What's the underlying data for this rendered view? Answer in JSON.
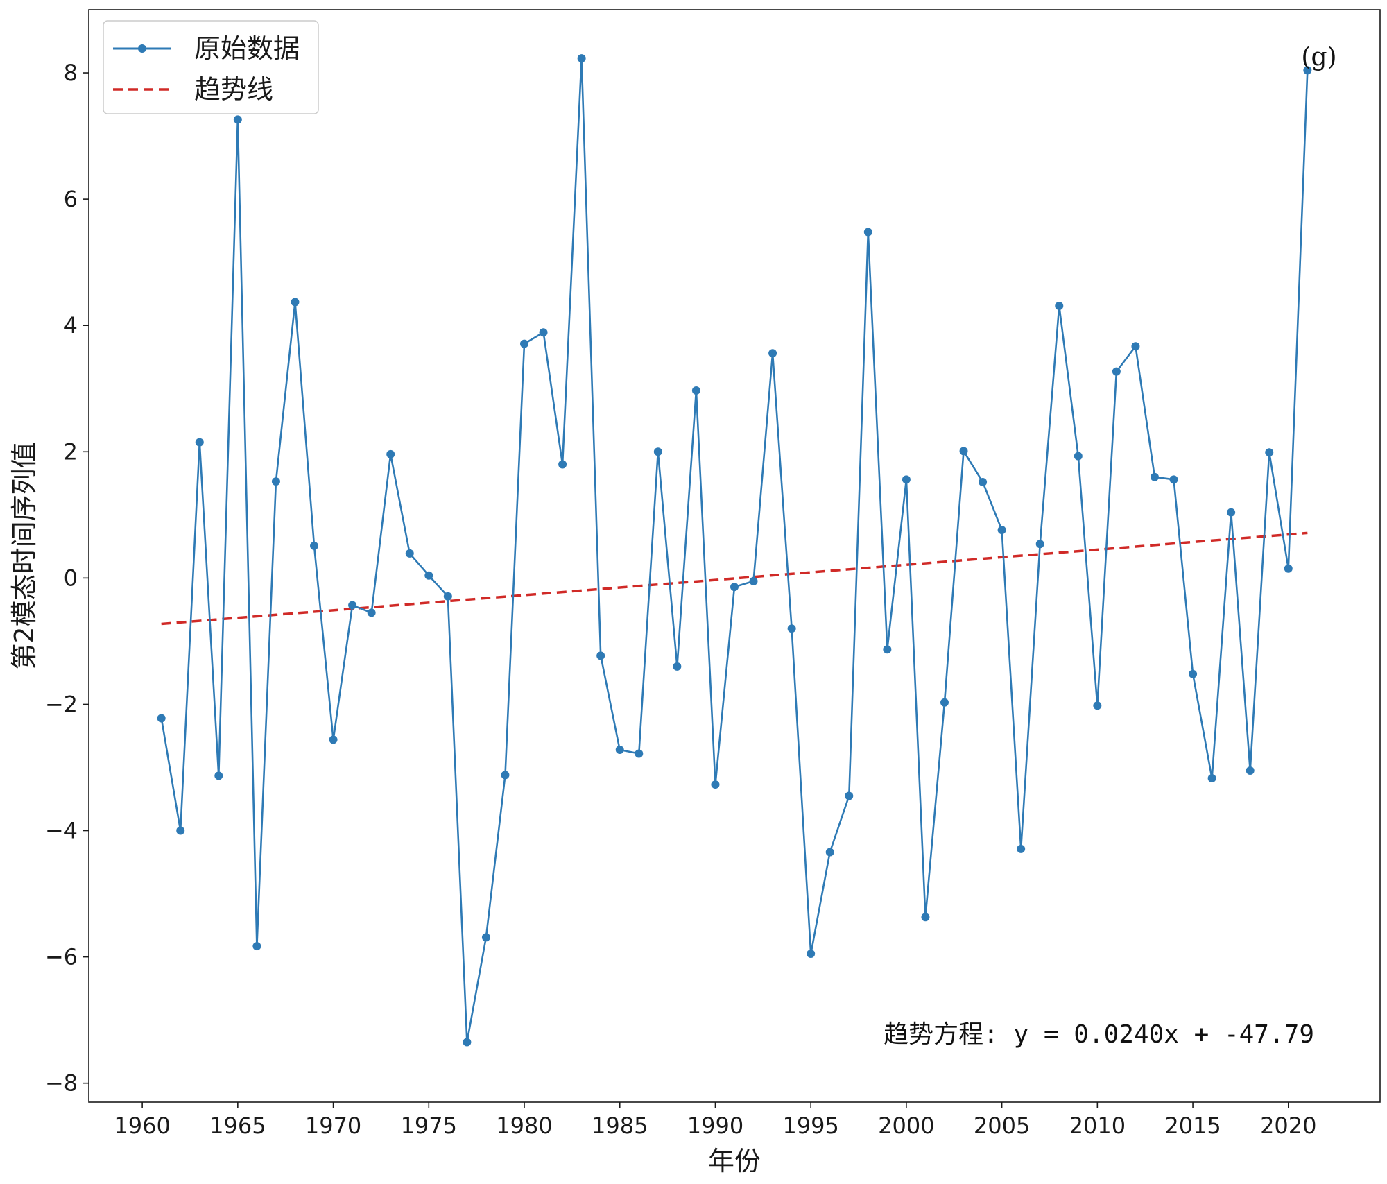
{
  "chart_data": {
    "type": "line",
    "title": "",
    "xlabel": "年份",
    "ylabel": "第2模态时间序列值",
    "xlim": [
      1957.2,
      2024.8
    ],
    "ylim": [
      -8.3,
      9.0
    ],
    "xticks": [
      1960,
      1965,
      1970,
      1975,
      1980,
      1985,
      1990,
      1995,
      2000,
      2005,
      2010,
      2015,
      2020
    ],
    "yticks": [
      -8,
      -6,
      -4,
      -2,
      0,
      2,
      4,
      6,
      8
    ],
    "ytick_labels": [
      "−8",
      "−6",
      "−4",
      "−2",
      "0",
      "2",
      "4",
      "6",
      "8"
    ],
    "grid": false,
    "legend_position": "upper-left",
    "series": [
      {
        "name": "原始数据",
        "style": "line-marker",
        "color": "#2e7ab5",
        "x": [
          1961,
          1962,
          1963,
          1964,
          1965,
          1966,
          1967,
          1968,
          1969,
          1970,
          1971,
          1972,
          1973,
          1974,
          1975,
          1976,
          1977,
          1978,
          1979,
          1980,
          1981,
          1982,
          1983,
          1984,
          1985,
          1986,
          1987,
          1988,
          1989,
          1990,
          1991,
          1992,
          1993,
          1994,
          1995,
          1996,
          1997,
          1998,
          1999,
          2000,
          2001,
          2002,
          2003,
          2004,
          2005,
          2006,
          2007,
          2008,
          2009,
          2010,
          2011,
          2012,
          2013,
          2014,
          2015,
          2016,
          2017,
          2018,
          2019,
          2020,
          2021
        ],
        "y": [
          -2.22,
          -4.0,
          2.15,
          -3.13,
          7.26,
          -5.83,
          1.53,
          4.37,
          0.51,
          -2.56,
          -0.43,
          -0.55,
          1.96,
          0.39,
          0.04,
          -0.29,
          -7.35,
          -5.69,
          -3.12,
          3.71,
          3.89,
          1.8,
          8.23,
          -1.23,
          -2.72,
          -2.78,
          2.0,
          -1.4,
          2.97,
          -3.27,
          -0.14,
          -0.05,
          3.56,
          -0.8,
          -5.95,
          -4.34,
          -3.45,
          5.48,
          -1.13,
          1.56,
          -5.37,
          -1.97,
          2.01,
          1.52,
          0.76,
          -4.29,
          0.54,
          4.31,
          1.93,
          -2.02,
          3.27,
          3.67,
          1.6,
          1.56,
          -1.52,
          -3.17,
          1.04,
          -3.05,
          1.99,
          0.15,
          8.04
        ]
      },
      {
        "name": "趋势线",
        "style": "dashed",
        "color": "#d02a27",
        "x": [
          1961,
          2021
        ],
        "y": [
          -0.726,
          0.714
        ]
      }
    ],
    "annotations": {
      "equation": "趋势方程: y = 0.0240x + -47.79",
      "panel": "(g)"
    }
  }
}
